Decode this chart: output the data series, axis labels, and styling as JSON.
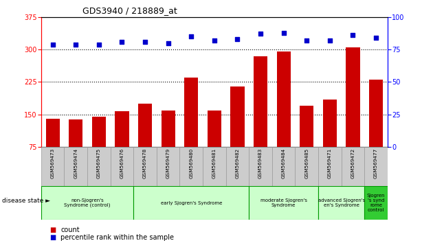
{
  "title": "GDS3940 / 218889_at",
  "samples": [
    "GSM569473",
    "GSM569474",
    "GSM569475",
    "GSM569476",
    "GSM569478",
    "GSM569479",
    "GSM569480",
    "GSM569481",
    "GSM569482",
    "GSM569483",
    "GSM569484",
    "GSM569485",
    "GSM569471",
    "GSM569472",
    "GSM569477"
  ],
  "counts": [
    140,
    138,
    145,
    158,
    175,
    160,
    235,
    160,
    215,
    285,
    295,
    170,
    185,
    305,
    230
  ],
  "percentiles": [
    79,
    79,
    79,
    81,
    81,
    80,
    85,
    82,
    83,
    87,
    88,
    82,
    82,
    86,
    84
  ],
  "bar_color": "#cc0000",
  "dot_color": "#0000cc",
  "ylim_left": [
    75,
    375
  ],
  "ylim_right": [
    0,
    100
  ],
  "yticks_left": [
    75,
    150,
    225,
    300,
    375
  ],
  "yticks_right": [
    0,
    25,
    50,
    75,
    100
  ],
  "grid_values": [
    150,
    225,
    300
  ],
  "groups": [
    {
      "label": "non-Sjogren's\nSyndrome (control)",
      "start": 0,
      "end": 4,
      "color": "#ccffcc"
    },
    {
      "label": "early Sjogren's Syndrome",
      "start": 4,
      "end": 9,
      "color": "#ccffcc"
    },
    {
      "label": "moderate Sjogren's\nSyndrome",
      "start": 9,
      "end": 12,
      "color": "#ccffcc"
    },
    {
      "label": "advanced Sjogren's\nen's Syndrome",
      "start": 12,
      "end": 14,
      "color": "#ccffcc"
    },
    {
      "label": "Sjogren\n's synd\nrome\ncontrol",
      "start": 14,
      "end": 15,
      "color": "#33cc33"
    }
  ],
  "tick_area_color": "#cccccc",
  "tick_area_border": "#999999",
  "group_border_color": "#009900",
  "disease_state_label": "disease state",
  "legend_count_label": "count",
  "legend_pct_label": "percentile rank within the sample",
  "fig_width": 6.3,
  "fig_height": 3.54,
  "dpi": 100
}
